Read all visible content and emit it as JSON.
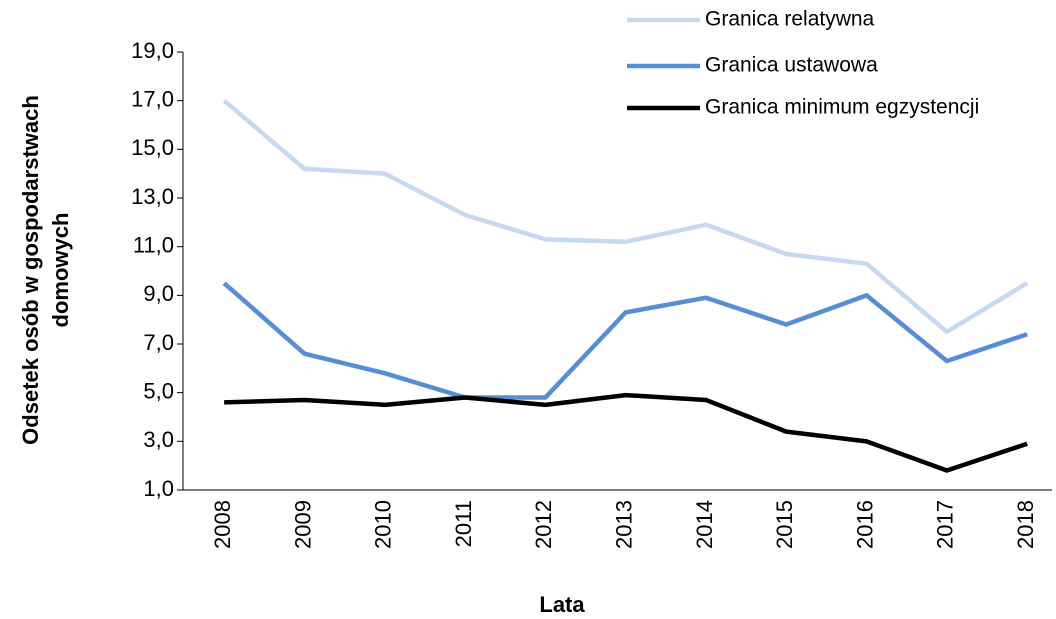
{
  "chart_data": {
    "type": "line",
    "ylabel": [
      "Odsetek osób w gospodarstwach",
      "domowych"
    ],
    "xlabel": "Lata",
    "categories": [
      "2008",
      "2009",
      "2010",
      "2011",
      "2012",
      "2013",
      "2014",
      "2015",
      "2016",
      "2017",
      "2018"
    ],
    "series": [
      {
        "name": "Granica relatywna",
        "color": "#c6d9f1",
        "values": [
          17.0,
          14.2,
          14.0,
          12.3,
          11.3,
          11.2,
          11.9,
          10.7,
          10.3,
          7.5,
          9.5
        ]
      },
      {
        "name": "Granica ustawowa",
        "color": "#558ed5",
        "values": [
          9.5,
          6.6,
          5.8,
          4.8,
          4.8,
          8.3,
          8.9,
          7.8,
          9.0,
          6.3,
          7.4
        ]
      },
      {
        "name": "Granica minimum egzystencji",
        "color": "#000000",
        "values": [
          4.6,
          4.7,
          4.5,
          4.8,
          4.5,
          4.9,
          4.7,
          3.4,
          3.0,
          1.8,
          2.9
        ]
      }
    ],
    "ylim": [
      1,
      19
    ],
    "yticks": [
      {
        "value": 1,
        "label": "1,0"
      },
      {
        "value": 3,
        "label": "3,0"
      },
      {
        "value": 5,
        "label": "5,0"
      },
      {
        "value": 7,
        "label": "7,0"
      },
      {
        "value": 9,
        "label": "9,0"
      },
      {
        "value": 11,
        "label": "11,0"
      },
      {
        "value": 13,
        "label": "13,0"
      },
      {
        "value": 15,
        "label": "15,0"
      },
      {
        "value": 17,
        "label": "17,0"
      },
      {
        "value": 19,
        "label": "19,0"
      }
    ],
    "grid": false,
    "legend": "top-right"
  }
}
